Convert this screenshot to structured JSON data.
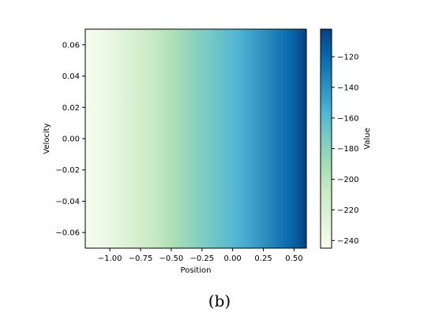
{
  "caption": "(b)",
  "chart_data": {
    "type": "heatmap",
    "title": "",
    "xlabel": "Position",
    "ylabel": "Velocity",
    "colorbar_label": "Value",
    "colormap": "GnBu",
    "colormap_colors": [
      "#f7fcf0",
      "#e0f3db",
      "#ccebc5",
      "#a8ddb5",
      "#7bccc4",
      "#4eb3d3",
      "#2b8cbe",
      "#0868ac",
      "#084081"
    ],
    "xlim": [
      -1.2,
      0.6
    ],
    "ylim": [
      -0.07,
      0.07
    ],
    "xticks": [
      -1.0,
      -0.75,
      -0.5,
      -0.25,
      0.0,
      0.25,
      0.5
    ],
    "xtick_labels": [
      "−1.00",
      "−0.75",
      "−0.50",
      "−0.25",
      "0.00",
      "0.25",
      "0.50"
    ],
    "yticks": [
      0.06,
      0.04,
      0.02,
      0.0,
      -0.02,
      -0.04,
      -0.06
    ],
    "ytick_labels": [
      "0.06",
      "0.04",
      "0.02",
      "0.00",
      "−0.02",
      "−0.04",
      "−0.06"
    ],
    "colorbar_range": [
      -245,
      -102
    ],
    "colorbar_ticks": [
      -120,
      -140,
      -160,
      -180,
      -200,
      -220,
      -240
    ],
    "colorbar_tick_labels": [
      "−120",
      "−140",
      "−160",
      "−180",
      "−200",
      "−220",
      "−240"
    ],
    "value_profile": {
      "position": [
        -1.2,
        -1.0,
        -0.75,
        -0.5,
        -0.25,
        0.0,
        0.25,
        0.5,
        0.6
      ],
      "value": [
        -245,
        -235,
        -215,
        -195,
        -175,
        -160,
        -140,
        -117,
        -102
      ]
    }
  }
}
